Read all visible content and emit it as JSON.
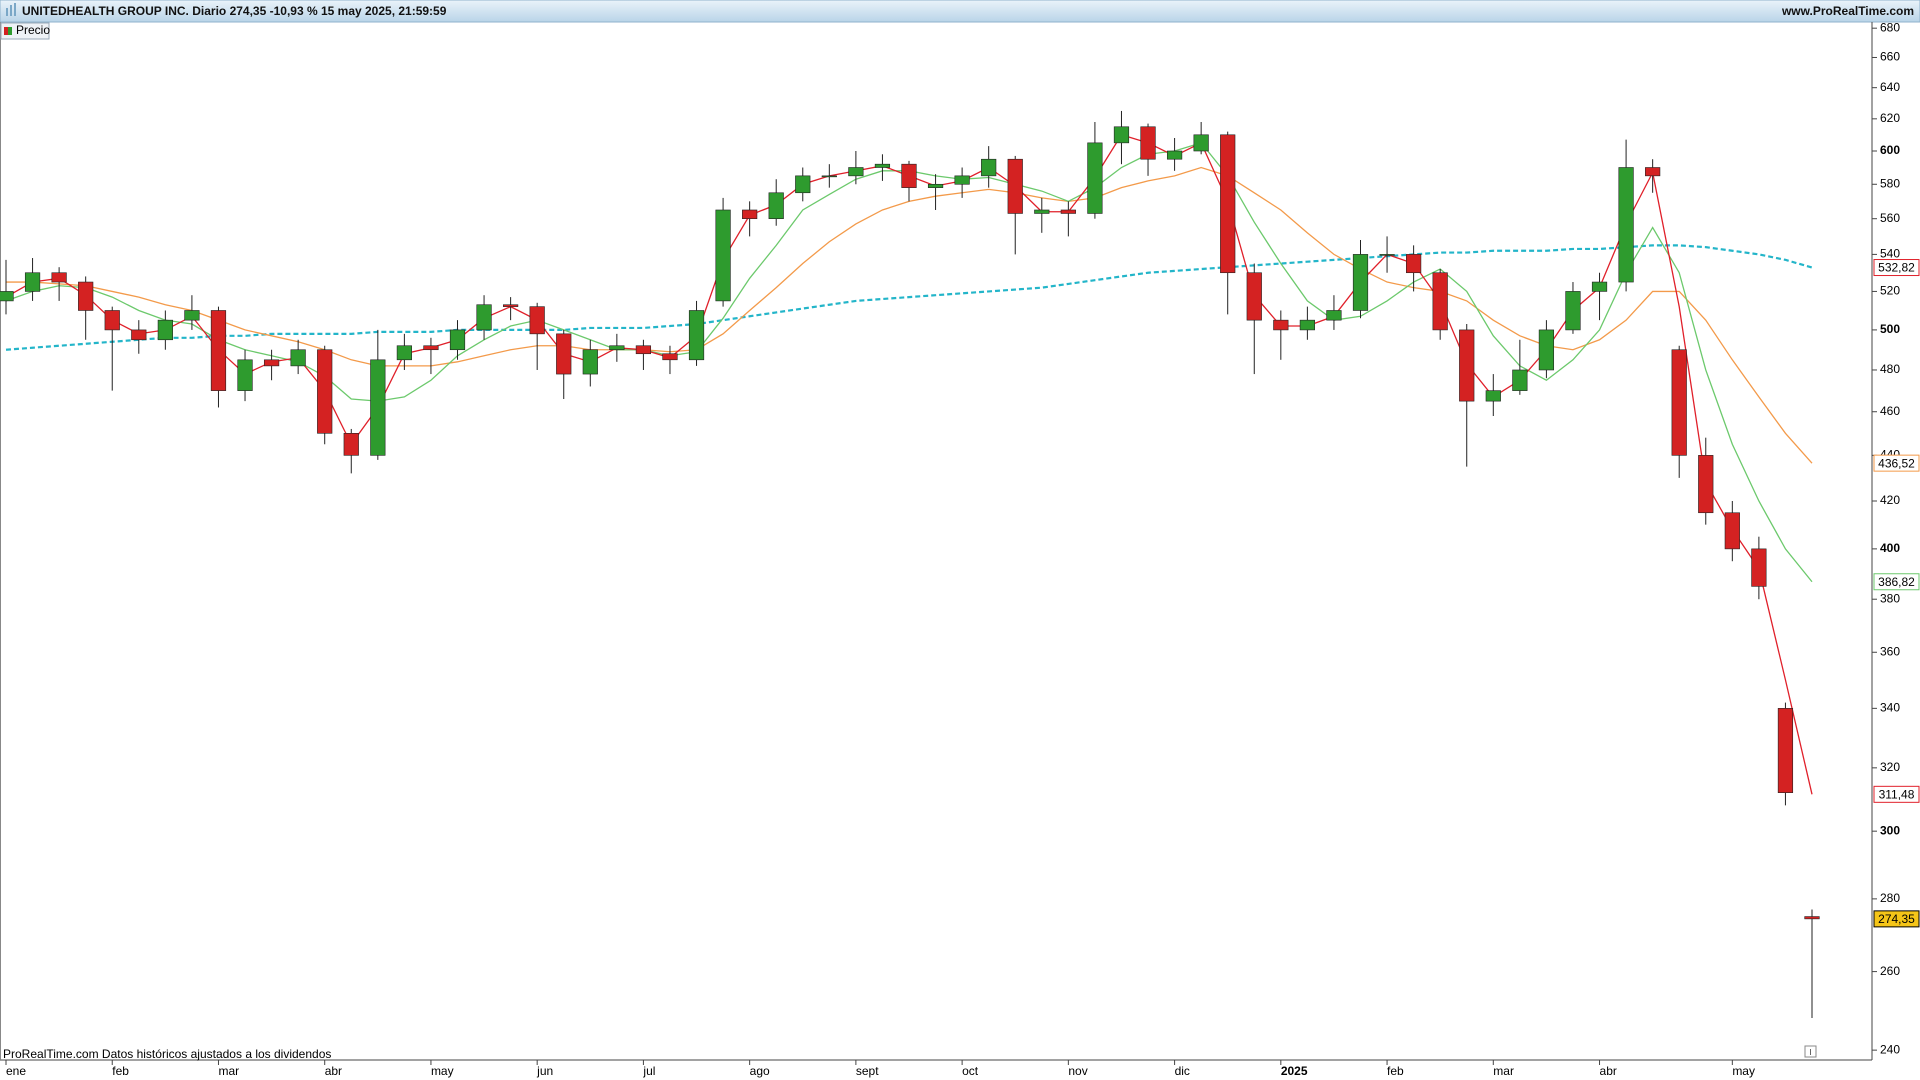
{
  "chart_data": {
    "type": "candlestick",
    "title": "UNITEDHEALTH GROUP INC. Diario 274,35 -10,93 % 15 may 2025, 21:59:59",
    "source_url": "www.ProRealTime.com",
    "footnote": "ProRealTime.com Datos históricos ajustados a los dividendos",
    "log_scale": true,
    "ylim": [
      237.6,
      684.3
    ],
    "yticks": [
      240,
      260,
      280,
      300,
      320,
      340,
      360,
      380,
      400,
      420,
      440,
      460,
      480,
      500,
      520,
      540,
      560,
      580,
      600,
      620,
      640,
      660,
      680
    ],
    "categories": [
      "ene",
      null,
      null,
      null,
      "feb",
      null,
      null,
      null,
      "mar",
      null,
      null,
      null,
      "abr",
      null,
      null,
      null,
      "may",
      null,
      null,
      null,
      "jun",
      null,
      null,
      null,
      "jul",
      null,
      null,
      null,
      "ago",
      null,
      null,
      null,
      "sept",
      null,
      null,
      null,
      "oct",
      null,
      null,
      null,
      "nov",
      null,
      null,
      null,
      "dic",
      null,
      null,
      null,
      "2025",
      null,
      null,
      null,
      "feb",
      null,
      null,
      null,
      "mar",
      null,
      null,
      null,
      "abr",
      null,
      null,
      null,
      null,
      "may",
      null,
      null,
      null
    ],
    "series": [
      {
        "name": "Precio",
        "type": "candlestick",
        "up_color": "#2e9b2e",
        "down_color": "#d42222",
        "last_label": "274,35",
        "last_label_bg": "#f5c518",
        "open": [
          515,
          520,
          530,
          525,
          510,
          500,
          495,
          505,
          510,
          470,
          485,
          482,
          490,
          450,
          440,
          485,
          492,
          490,
          500,
          513,
          512,
          498,
          478,
          490,
          492,
          488,
          485,
          515,
          565,
          560,
          575,
          585,
          585,
          590,
          592,
          578,
          580,
          585,
          595,
          563,
          565,
          563,
          605,
          615,
          595,
          600,
          610,
          530,
          505,
          500,
          505,
          510,
          540,
          540,
          530,
          500,
          465,
          470,
          480,
          500,
          520,
          525,
          590,
          490,
          440,
          415,
          400,
          340,
          275
        ],
        "high": [
          537,
          538,
          533,
          528,
          512,
          505,
          510,
          518,
          512,
          490,
          490,
          495,
          492,
          452,
          500,
          498,
          496,
          505,
          518,
          517,
          514,
          500,
          495,
          498,
          495,
          492,
          515,
          572,
          570,
          583,
          590,
          592,
          600,
          598,
          594,
          586,
          590,
          603,
          597,
          572,
          570,
          618,
          625,
          617,
          608,
          618,
          612,
          535,
          510,
          512,
          518,
          548,
          550,
          545,
          532,
          503,
          478,
          495,
          505,
          525,
          530,
          607,
          595,
          492,
          448,
          420,
          405,
          342,
          277
        ],
        "low": [
          508,
          515,
          515,
          495,
          470,
          488,
          490,
          500,
          462,
          465,
          475,
          478,
          445,
          432,
          438,
          480,
          478,
          485,
          495,
          505,
          480,
          466,
          472,
          484,
          480,
          478,
          482,
          512,
          550,
          556,
          570,
          578,
          580,
          582,
          570,
          565,
          572,
          578,
          540,
          552,
          550,
          560,
          592,
          585,
          588,
          598,
          508,
          478,
          485,
          495,
          500,
          506,
          530,
          520,
          495,
          435,
          458,
          468,
          476,
          498,
          505,
          520,
          575,
          430,
          410,
          395,
          380,
          308,
          248
        ],
        "close": [
          520,
          530,
          525,
          510,
          500,
          495,
          505,
          510,
          470,
          485,
          482,
          490,
          450,
          440,
          485,
          492,
          490,
          500,
          513,
          512,
          498,
          478,
          490,
          492,
          488,
          485,
          510,
          565,
          560,
          575,
          585,
          585,
          590,
          592,
          578,
          580,
          585,
          595,
          563,
          565,
          563,
          605,
          615,
          595,
          600,
          610,
          530,
          505,
          500,
          505,
          510,
          540,
          540,
          530,
          500,
          465,
          470,
          480,
          500,
          520,
          525,
          590,
          585,
          440,
          415,
          400,
          385,
          312,
          274.35
        ]
      },
      {
        "type": "line",
        "color": "#23b5c9",
        "dashed": true,
        "last_label": "532,82",
        "values": [
          490,
          491,
          492,
          493,
          494,
          495,
          496,
          496,
          497,
          497,
          498,
          498,
          498,
          498,
          499,
          499,
          499,
          500,
          500,
          500,
          500,
          500,
          501,
          501,
          501,
          502,
          503,
          505,
          507,
          509,
          511,
          513,
          515,
          516,
          517,
          518,
          519,
          520,
          521,
          522,
          524,
          526,
          528,
          530,
          531,
          532,
          533,
          534,
          535,
          536,
          537,
          538,
          539,
          540,
          541,
          541,
          542,
          542,
          542,
          543,
          543,
          544,
          545,
          545,
          544,
          542,
          540,
          537,
          532.82
        ],
        "label_color": "#e0202a"
      },
      {
        "type": "line",
        "color": "#f39a4a",
        "last_label": "436,52",
        "values": [
          525,
          525,
          524,
          523,
          520,
          517,
          513,
          510,
          505,
          500,
          497,
          494,
          490,
          485,
          482,
          482,
          482,
          484,
          487,
          490,
          492,
          492,
          490,
          490,
          490,
          489,
          490,
          498,
          510,
          522,
          535,
          547,
          557,
          565,
          570,
          573,
          575,
          577,
          575,
          572,
          570,
          572,
          578,
          582,
          585,
          590,
          585,
          575,
          565,
          552,
          540,
          532,
          525,
          522,
          520,
          515,
          505,
          497,
          492,
          490,
          495,
          505,
          520,
          520,
          505,
          485,
          467,
          450,
          436.52
        ]
      },
      {
        "type": "line",
        "color": "#6cc96c",
        "last_label": "386,82",
        "values": [
          515,
          520,
          523,
          522,
          517,
          510,
          505,
          503,
          495,
          490,
          487,
          484,
          477,
          466,
          465,
          467,
          475,
          487,
          495,
          502,
          505,
          500,
          495,
          490,
          490,
          487,
          489,
          506,
          527,
          545,
          565,
          574,
          583,
          588,
          588,
          585,
          583,
          584,
          580,
          576,
          570,
          578,
          590,
          598,
          600,
          605,
          585,
          558,
          535,
          515,
          505,
          507,
          515,
          525,
          532,
          520,
          497,
          482,
          475,
          485,
          500,
          530,
          555,
          530,
          480,
          445,
          420,
          400,
          386.82
        ]
      },
      {
        "type": "line",
        "color": "#e0202a",
        "last_label": "311,48",
        "values": [
          517,
          525,
          527,
          518,
          505,
          498,
          500,
          507,
          490,
          478,
          484,
          486,
          470,
          445,
          462,
          488,
          491,
          495,
          506,
          512,
          505,
          488,
          484,
          491,
          490,
          486,
          497,
          537,
          562,
          568,
          580,
          585,
          588,
          591,
          585,
          579,
          582,
          590,
          579,
          564,
          564,
          584,
          610,
          605,
          597,
          605,
          570,
          518,
          502,
          502,
          507,
          525,
          540,
          535,
          515,
          483,
          467,
          475,
          490,
          510,
          522,
          557,
          587,
          512,
          428,
          408,
          392,
          350,
          311.48
        ]
      }
    ]
  }
}
